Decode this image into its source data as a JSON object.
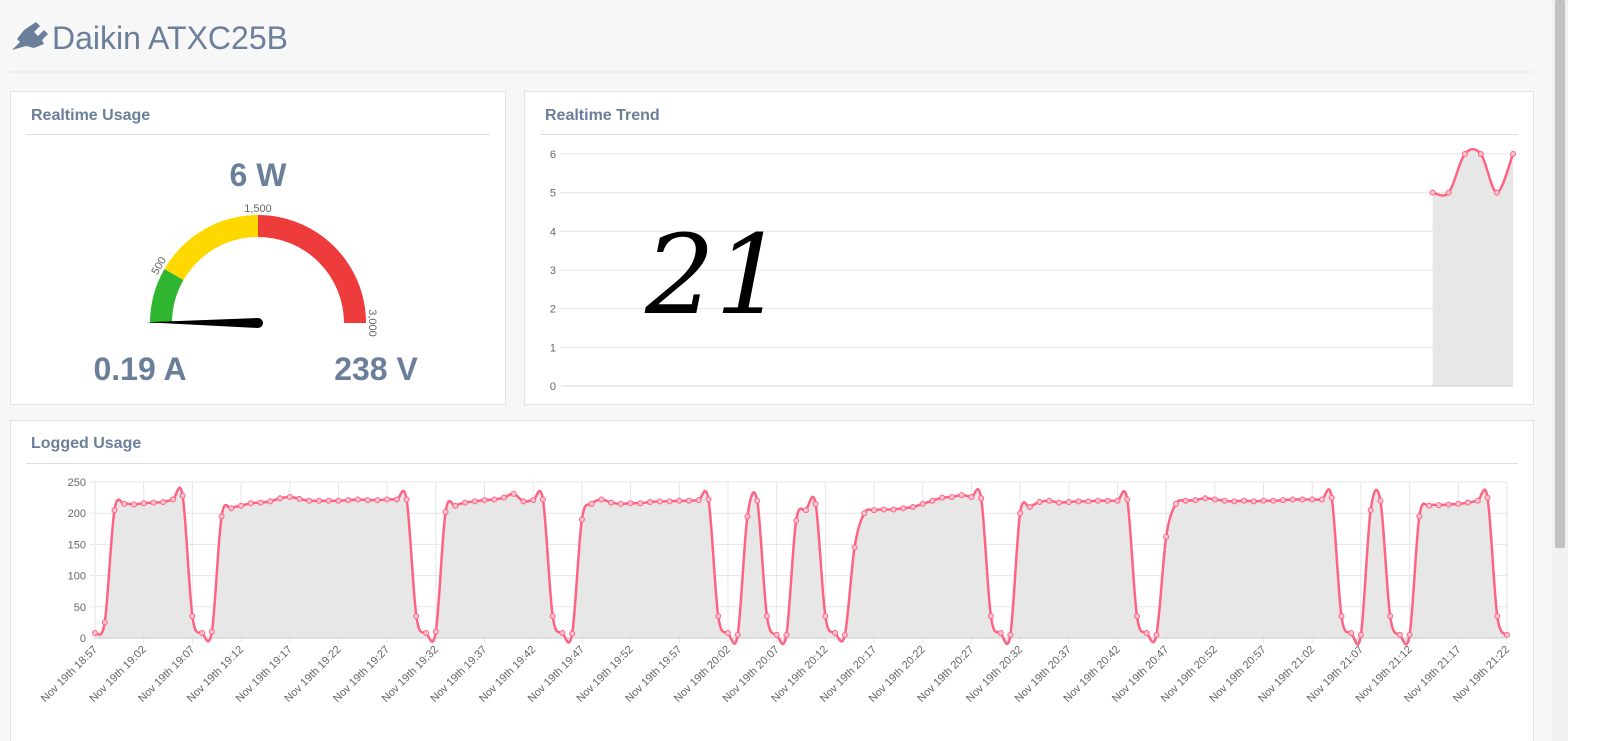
{
  "header": {
    "title": "Daikin ATXC25B"
  },
  "chart_data": [
    {
      "type": "gauge",
      "title": "Realtime Usage",
      "value": 6,
      "value_label": "6 W",
      "range": [
        0,
        3000
      ],
      "bands": [
        {
          "from": 0,
          "to": 500,
          "color": "#2fb52f"
        },
        {
          "from": 500,
          "to": 1500,
          "color": "#ffd800"
        },
        {
          "from": 1500,
          "to": 3000,
          "color": "#ee3b3b"
        }
      ],
      "ticks": [
        500,
        {
          "value": 1500,
          "label": "1,500"
        },
        {
          "value": 3000,
          "label": "3,000"
        }
      ],
      "current": "0.19 A",
      "voltage": "238 V"
    },
    {
      "type": "line",
      "title": "Realtime Trend",
      "annotation": "21",
      "categories": [
        null,
        null,
        null,
        null,
        null,
        null,
        null,
        null,
        null,
        null,
        null,
        null,
        null,
        null,
        null,
        null,
        null,
        null,
        null,
        null,
        null,
        null,
        null,
        null,
        null,
        null,
        null,
        null,
        null,
        null,
        null,
        null,
        null,
        null,
        null,
        null,
        null,
        null,
        null,
        null,
        null,
        null,
        null,
        null,
        null,
        null,
        null,
        null,
        null,
        null,
        null,
        null,
        null,
        null,
        null,
        null,
        null,
        null,
        null,
        null
      ],
      "series": [
        {
          "color": "#ff6384",
          "fill": "#e3e3e3",
          "values": [
            null,
            null,
            null,
            null,
            null,
            null,
            null,
            null,
            null,
            null,
            null,
            null,
            null,
            null,
            null,
            null,
            null,
            null,
            null,
            null,
            null,
            null,
            null,
            null,
            null,
            null,
            null,
            null,
            null,
            null,
            null,
            null,
            null,
            null,
            null,
            null,
            null,
            null,
            null,
            null,
            null,
            null,
            null,
            null,
            null,
            null,
            null,
            null,
            null,
            null,
            null,
            null,
            null,
            null,
            5,
            5,
            6,
            6,
            5,
            6
          ]
        }
      ],
      "ylim": [
        0,
        6
      ],
      "yticks": [
        0,
        1,
        2,
        3,
        4,
        5,
        6
      ],
      "grid": true
    },
    {
      "type": "line",
      "title": "Logged Usage",
      "categories": [
        "Nov 19th 18:57",
        null,
        null,
        null,
        null,
        "Nov 19th 19:02",
        null,
        null,
        null,
        null,
        "Nov 19th 19:07",
        null,
        null,
        null,
        null,
        "Nov 19th 19:12",
        null,
        null,
        null,
        null,
        "Nov 19th 19:17",
        null,
        null,
        null,
        null,
        "Nov 19th 19:22",
        null,
        null,
        null,
        null,
        "Nov 19th 19:27",
        null,
        null,
        null,
        null,
        "Nov 19th 19:32",
        null,
        null,
        null,
        null,
        "Nov 19th 19:37",
        null,
        null,
        null,
        null,
        "Nov 19th 19:42",
        null,
        null,
        null,
        null,
        "Nov 19th 19:47",
        null,
        null,
        null,
        null,
        "Nov 19th 19:52",
        null,
        null,
        null,
        null,
        "Nov 19th 19:57",
        null,
        null,
        null,
        null,
        "Nov 19th 20:02",
        null,
        null,
        null,
        null,
        "Nov 19th 20:07",
        null,
        null,
        null,
        null,
        "Nov 19th 20:12",
        null,
        null,
        null,
        null,
        "Nov 19th 20:17",
        null,
        null,
        null,
        null,
        "Nov 19th 20:22",
        null,
        null,
        null,
        null,
        "Nov 19th 20:27",
        null,
        null,
        null,
        null,
        "Nov 19th 20:32",
        null,
        null,
        null,
        null,
        "Nov 19th 20:37",
        null,
        null,
        null,
        null,
        "Nov 19th 20:42",
        null,
        null,
        null,
        null,
        "Nov 19th 20:47",
        null,
        null,
        null,
        null,
        "Nov 19th 20:52",
        null,
        null,
        null,
        null,
        "Nov 19th 20:57",
        null,
        null,
        null,
        null,
        "Nov 19th 21:02",
        null,
        null,
        null,
        null,
        "Nov 19th 21:07",
        null,
        null,
        null,
        null,
        "Nov 19th 21:12",
        null,
        null,
        null,
        null,
        "Nov 19th 21:17",
        null,
        null,
        null,
        null,
        "Nov 19th 21:22"
      ],
      "series": [
        {
          "color": "#ff6384",
          "fill": "#e3e3e3",
          "values": [
            8,
            25,
            205,
            215,
            214,
            216,
            217,
            218,
            222,
            228,
            35,
            8,
            10,
            195,
            208,
            212,
            216,
            217,
            219,
            224,
            226,
            223,
            220,
            220,
            220,
            220,
            221,
            222,
            221,
            221,
            222,
            222,
            222,
            35,
            8,
            10,
            202,
            212,
            217,
            219,
            221,
            222,
            225,
            231,
            219,
            221,
            222,
            35,
            8,
            7,
            190,
            215,
            222,
            217,
            215,
            216,
            216,
            218,
            219,
            219,
            220,
            220,
            221,
            222,
            35,
            8,
            5,
            195,
            220,
            35,
            5,
            5,
            188,
            205,
            215,
            35,
            8,
            5,
            145,
            200,
            205,
            206,
            206,
            208,
            210,
            215,
            220,
            225,
            226,
            229,
            226,
            224,
            35,
            8,
            5,
            200,
            210,
            218,
            220,
            217,
            218,
            219,
            219,
            220,
            220,
            220,
            222,
            35,
            8,
            5,
            162,
            215,
            220,
            221,
            224,
            222,
            220,
            219,
            220,
            219,
            220,
            220,
            221,
            222,
            222,
            222,
            222,
            225,
            35,
            8,
            5,
            205,
            220,
            35,
            5,
            5,
            195,
            212,
            213,
            214,
            215,
            217,
            220,
            225,
            35,
            5
          ]
        }
      ],
      "ylim": [
        0,
        250
      ],
      "yticks": [
        0,
        50,
        100,
        150,
        200,
        250
      ],
      "grid": true
    }
  ]
}
